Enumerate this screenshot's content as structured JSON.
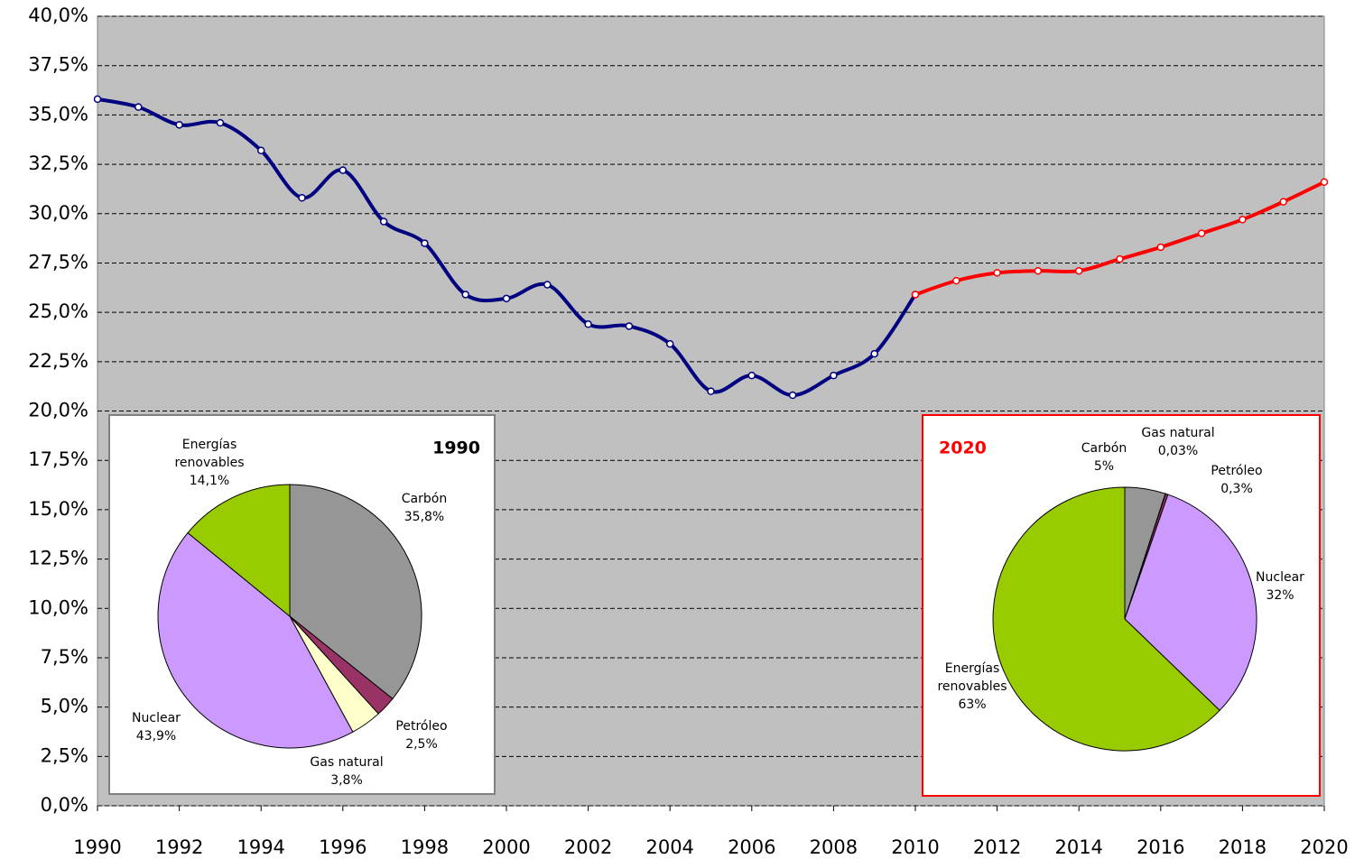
{
  "chart_data": [
    {
      "type": "line",
      "x": [
        1990,
        1991,
        1992,
        1993,
        1994,
        1995,
        1996,
        1997,
        1998,
        1999,
        2000,
        2001,
        2002,
        2003,
        2004,
        2005,
        2006,
        2007,
        2008,
        2009,
        2010,
        2011,
        2012,
        2013,
        2014,
        2015,
        2016,
        2017,
        2018,
        2019,
        2020
      ],
      "series": [
        {
          "color": "#000080",
          "values": [
            35.8,
            35.4,
            34.5,
            34.6,
            33.2,
            30.8,
            32.2,
            29.6,
            28.5,
            25.9,
            25.7,
            26.4,
            24.4,
            24.3,
            23.4,
            21.0,
            21.8,
            20.8,
            21.8,
            22.9,
            25.9,
            null,
            null,
            null,
            null,
            null,
            null,
            null,
            null,
            null,
            null
          ]
        },
        {
          "color": "#ff0000",
          "values": [
            null,
            null,
            null,
            null,
            null,
            null,
            null,
            null,
            null,
            null,
            null,
            null,
            null,
            null,
            null,
            null,
            null,
            null,
            null,
            null,
            25.9,
            26.6,
            27.0,
            27.1,
            27.1,
            27.7,
            28.3,
            29.0,
            29.7,
            30.6,
            31.6
          ]
        }
      ],
      "xlim": [
        1990,
        2020
      ],
      "xticks": [
        1990,
        1992,
        1994,
        1996,
        1998,
        2000,
        2002,
        2004,
        2006,
        2008,
        2010,
        2012,
        2014,
        2016,
        2018,
        2020
      ],
      "ylim": [
        0,
        40
      ],
      "yticks": [
        {
          "value": 0,
          "label": "0,0%"
        },
        {
          "value": 2.5,
          "label": "2,5%"
        },
        {
          "value": 5,
          "label": "5,0%"
        },
        {
          "value": 7.5,
          "label": "7,5%"
        },
        {
          "value": 10,
          "label": "10,0%"
        },
        {
          "value": 12.5,
          "label": "12,5%"
        },
        {
          "value": 15,
          "label": "15,0%"
        },
        {
          "value": 17.5,
          "label": "17,5%"
        },
        {
          "value": 20,
          "label": "20,0%"
        },
        {
          "value": 22.5,
          "label": "22,5%"
        },
        {
          "value": 25,
          "label": "25,0%"
        },
        {
          "value": 27.5,
          "label": "27,5%"
        },
        {
          "value": 30,
          "label": "30,0%"
        },
        {
          "value": 32.5,
          "label": "32,5%"
        },
        {
          "value": 35,
          "label": "35,0%"
        },
        {
          "value": 37.5,
          "label": "37,5%"
        },
        {
          "value": 40,
          "label": "40,0%"
        }
      ],
      "grid": true
    },
    {
      "type": "pie",
      "title": "1990",
      "title_color": "#000000",
      "border_color": "#808080",
      "categories": [
        "Carbón",
        "Petróleo",
        "Gas natural",
        "Nuclear",
        "Energías renovables"
      ],
      "values": [
        35.8,
        2.5,
        3.8,
        43.9,
        14.1
      ],
      "value_labels": [
        "35,8%",
        "2,5%",
        "3,8%",
        "43,9%",
        "14,1%"
      ],
      "colors": [
        "#969696",
        "#993366",
        "#ffffcc",
        "#cc99ff",
        "#99cc00"
      ]
    },
    {
      "type": "pie",
      "title": "2020",
      "title_color": "#ff0000",
      "border_color": "#ff0000",
      "categories": [
        "Carbón",
        "Gas natural",
        "Petróleo",
        "Nuclear",
        "Energías renovables"
      ],
      "values": [
        5,
        0.03,
        0.3,
        32,
        63
      ],
      "value_labels": [
        "5%",
        "0,03%",
        "0,3%",
        "32%",
        "63%"
      ],
      "colors": [
        "#969696",
        "#ffffcc",
        "#993366",
        "#cc99ff",
        "#99cc00"
      ]
    }
  ]
}
